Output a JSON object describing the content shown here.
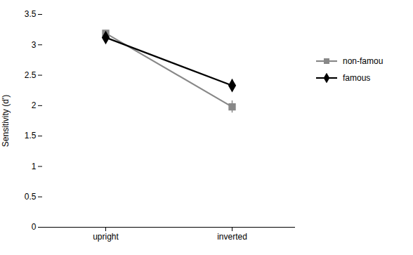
{
  "chart_data": {
    "type": "line",
    "categories": [
      "upright",
      "inverted"
    ],
    "ylabel": "Sensitivity (d')",
    "ylim": [
      0,
      3.5
    ],
    "yticks": [
      0,
      0.5,
      1,
      1.5,
      2,
      2.5,
      3,
      3.5
    ],
    "legend": "right",
    "series": [
      {
        "name": "non-famou",
        "color": "#888888",
        "marker": "square",
        "values": [
          3.19,
          1.98
        ],
        "errors": [
          0.05,
          0.1
        ]
      },
      {
        "name": "famous",
        "color": "#000000",
        "marker": "diamond",
        "values": [
          3.12,
          2.33
        ],
        "errors": [
          0.05,
          0.1
        ]
      }
    ]
  }
}
